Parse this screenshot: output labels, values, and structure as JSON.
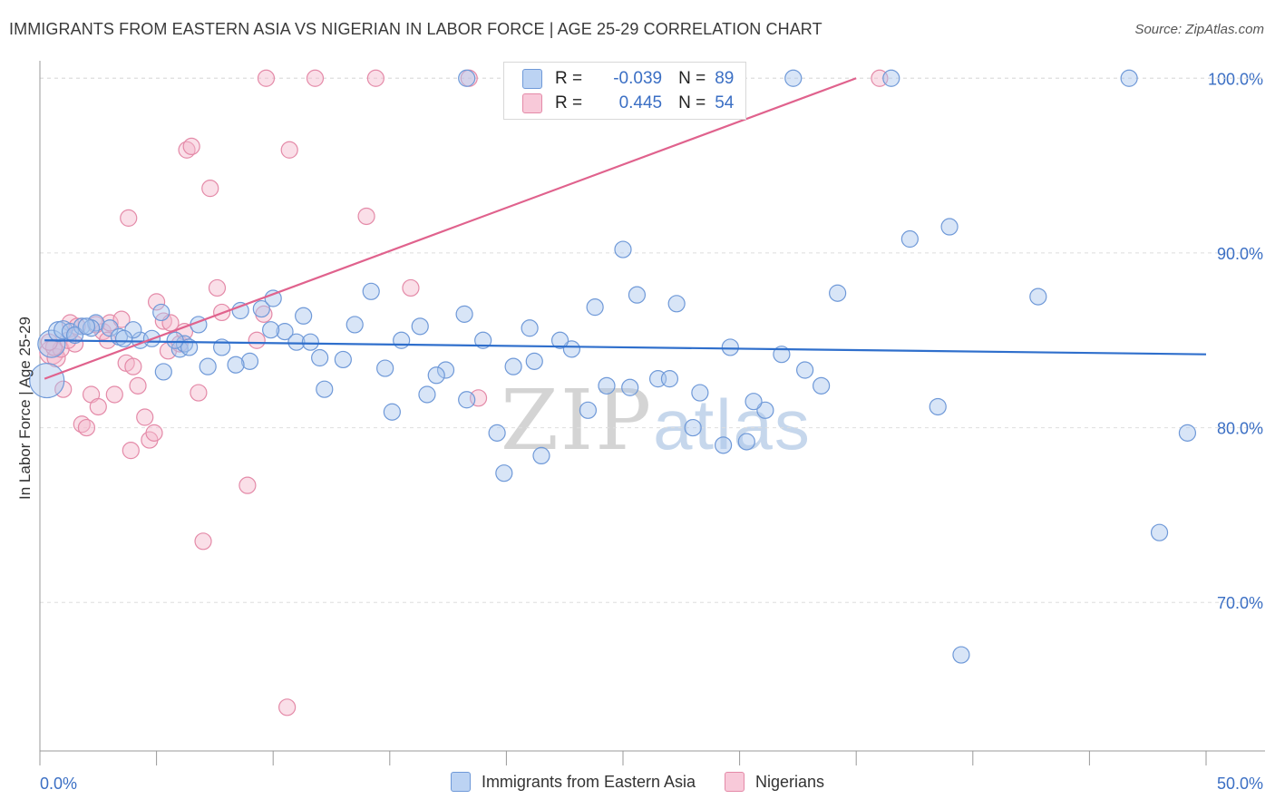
{
  "title": "IMMIGRANTS FROM EASTERN ASIA VS NIGERIAN IN LABOR FORCE | AGE 25-29 CORRELATION CHART",
  "source": "Source: ZipAtlas.com",
  "watermark": {
    "zip": "ZIP",
    "atlas": "atlas"
  },
  "legend_top": {
    "rows": [
      {
        "r_label": "R =",
        "r_value": "-0.039",
        "n_label": "N =",
        "n_value": "89"
      },
      {
        "r_label": "R =",
        "r_value": "0.445",
        "n_label": "N =",
        "n_value": "54"
      }
    ]
  },
  "legend_bottom": {
    "items": [
      {
        "label": "Immigrants from Eastern Asia"
      },
      {
        "label": "Nigerians"
      }
    ]
  },
  "colors": {
    "blue_fill": "#a9c6ee",
    "blue_stroke": "#6f99d8",
    "blue_line": "#2f6fcc",
    "pink_fill": "#f5b8cc",
    "pink_stroke": "#e48aa8",
    "pink_line": "#e0628d",
    "tick_text": "#3b6fc4",
    "grid": "#dedede"
  },
  "chart_data": {
    "type": "scatter",
    "title": "IMMIGRANTS FROM EASTERN ASIA VS NIGERIAN IN LABOR FORCE | AGE 25-29 CORRELATION CHART",
    "xlabel": "",
    "ylabel": "In Labor Force | Age 25-29",
    "xlim": [
      0,
      50
    ],
    "ylim": [
      61.5,
      101
    ],
    "x_tick_labels": [
      "0.0%",
      "50.0%"
    ],
    "y_ticks": [
      70,
      80,
      90,
      100
    ],
    "y_tick_labels": [
      "70.0%",
      "80.0%",
      "90.0%",
      "100.0%"
    ],
    "series": [
      {
        "name": "Immigrants from Eastern Asia",
        "r": -0.039,
        "n": 89,
        "trend": {
          "x": [
            0.2,
            50
          ],
          "y": [
            85.0,
            84.2
          ]
        },
        "points": [
          [
            0.3,
            82.7,
            18
          ],
          [
            0.5,
            84.8,
            14
          ],
          [
            0.8,
            85.5,
            10
          ],
          [
            1.0,
            85.6,
            9
          ],
          [
            1.3,
            85.5,
            8
          ],
          [
            1.8,
            85.8,
            8
          ],
          [
            2.4,
            86.0,
            8
          ],
          [
            3.0,
            85.7,
            8
          ],
          [
            4.3,
            85.0,
            8
          ],
          [
            5.2,
            86.6,
            8
          ],
          [
            5.3,
            83.2,
            8
          ],
          [
            6.0,
            84.5,
            8
          ],
          [
            6.2,
            84.8,
            8
          ],
          [
            7.8,
            84.6,
            8
          ],
          [
            8.6,
            86.7,
            8
          ],
          [
            9.5,
            86.8,
            8
          ],
          [
            10.0,
            87.4,
            8
          ],
          [
            11.3,
            86.4,
            8
          ],
          [
            12.0,
            84.0,
            8
          ],
          [
            12.2,
            82.2,
            8
          ],
          [
            13.5,
            85.9,
            8
          ],
          [
            14.2,
            87.8,
            8
          ],
          [
            14.8,
            83.4,
            8
          ],
          [
            15.1,
            80.9,
            8
          ],
          [
            16.3,
            85.8,
            8
          ],
          [
            16.6,
            81.9,
            8
          ],
          [
            17.4,
            83.3,
            8
          ],
          [
            18.2,
            86.5,
            8
          ],
          [
            18.3,
            81.6,
            8
          ],
          [
            19.0,
            85.0,
            8
          ],
          [
            19.6,
            79.7,
            8
          ],
          [
            20.3,
            83.5,
            8
          ],
          [
            21.0,
            85.7,
            8
          ],
          [
            21.5,
            78.4,
            8
          ],
          [
            22.8,
            84.5,
            8
          ],
          [
            23.5,
            81.0,
            8
          ],
          [
            24.3,
            82.4,
            8
          ],
          [
            25.0,
            90.2,
            8
          ],
          [
            25.6,
            87.6,
            8
          ],
          [
            26.5,
            82.8,
            8
          ],
          [
            27.3,
            87.1,
            8
          ],
          [
            28.3,
            82.0,
            8
          ],
          [
            29.3,
            79.0,
            8
          ],
          [
            29.6,
            84.6,
            8
          ],
          [
            30.3,
            79.2,
            8
          ],
          [
            31.1,
            81.0,
            8
          ],
          [
            31.8,
            84.2,
            8
          ],
          [
            32.3,
            100.0,
            8
          ],
          [
            34.2,
            87.7,
            8
          ],
          [
            36.5,
            100.0,
            8
          ],
          [
            37.3,
            90.8,
            8
          ],
          [
            38.5,
            81.2,
            8
          ],
          [
            39.0,
            91.5,
            8
          ],
          [
            39.5,
            67.0,
            8
          ],
          [
            42.8,
            87.5,
            8
          ],
          [
            46.7,
            100.0,
            8
          ],
          [
            48.0,
            74.0,
            8
          ],
          [
            49.2,
            79.7,
            8
          ],
          [
            1.5,
            85.3,
            8
          ],
          [
            3.4,
            85.2,
            8
          ],
          [
            4.8,
            85.1,
            8
          ],
          [
            6.8,
            85.9,
            8
          ],
          [
            7.2,
            83.5,
            8
          ],
          [
            9.0,
            83.8,
            8
          ],
          [
            10.5,
            85.5,
            8
          ],
          [
            11.0,
            84.9,
            8
          ],
          [
            13.0,
            83.9,
            8
          ],
          [
            15.5,
            85.0,
            8
          ],
          [
            17.0,
            83.0,
            8
          ],
          [
            19.9,
            77.4,
            8
          ],
          [
            21.2,
            83.8,
            8
          ],
          [
            22.3,
            85.0,
            8
          ],
          [
            23.8,
            86.9,
            8
          ],
          [
            25.3,
            82.3,
            8
          ],
          [
            27.0,
            82.8,
            8
          ],
          [
            28.0,
            80.0,
            8
          ],
          [
            30.6,
            81.5,
            8
          ],
          [
            32.8,
            83.3,
            8
          ],
          [
            33.5,
            82.4,
            8
          ],
          [
            18.3,
            100.0,
            8
          ],
          [
            9.9,
            85.6,
            8
          ],
          [
            6.4,
            84.6,
            8
          ],
          [
            2.2,
            85.7,
            8
          ],
          [
            4.0,
            85.6,
            8
          ],
          [
            11.6,
            84.9,
            8
          ],
          [
            8.4,
            83.6,
            8
          ],
          [
            5.8,
            85.0,
            8
          ],
          [
            2.0,
            85.8,
            8
          ],
          [
            3.6,
            85.1,
            8
          ]
        ]
      },
      {
        "name": "Nigerians",
        "r": 0.445,
        "n": 54,
        "trend": {
          "x": [
            0.2,
            35
          ],
          "y": [
            82.8,
            100.0
          ]
        },
        "points": [
          [
            0.5,
            84.3,
            12
          ],
          [
            0.7,
            84.0,
            9
          ],
          [
            0.9,
            84.5,
            8
          ],
          [
            1.0,
            82.2,
            8
          ],
          [
            1.3,
            86.0,
            8
          ],
          [
            1.5,
            84.8,
            8
          ],
          [
            1.8,
            80.2,
            8
          ],
          [
            2.0,
            80.0,
            8
          ],
          [
            2.2,
            81.9,
            8
          ],
          [
            2.5,
            81.2,
            8
          ],
          [
            2.7,
            85.5,
            8
          ],
          [
            3.0,
            86.0,
            8
          ],
          [
            3.2,
            81.9,
            8
          ],
          [
            3.5,
            86.2,
            8
          ],
          [
            3.7,
            83.7,
            8
          ],
          [
            3.9,
            78.7,
            8
          ],
          [
            4.0,
            83.5,
            8
          ],
          [
            4.2,
            82.4,
            8
          ],
          [
            4.5,
            80.6,
            8
          ],
          [
            4.7,
            79.3,
            8
          ],
          [
            4.9,
            79.7,
            8
          ],
          [
            5.0,
            87.2,
            8
          ],
          [
            5.3,
            86.1,
            8
          ],
          [
            5.5,
            84.4,
            8
          ],
          [
            6.0,
            84.8,
            8
          ],
          [
            6.2,
            85.5,
            8
          ],
          [
            6.3,
            95.9,
            8
          ],
          [
            6.5,
            96.1,
            8
          ],
          [
            6.8,
            82.0,
            8
          ],
          [
            7.0,
            73.5,
            8
          ],
          [
            7.3,
            93.7,
            8
          ],
          [
            7.6,
            88.0,
            8
          ],
          [
            7.8,
            86.6,
            8
          ],
          [
            8.9,
            76.7,
            8
          ],
          [
            9.3,
            85.0,
            8
          ],
          [
            9.6,
            86.5,
            8
          ],
          [
            9.7,
            100.0,
            8
          ],
          [
            10.7,
            95.9,
            8
          ],
          [
            10.6,
            64.0,
            8
          ],
          [
            11.8,
            100.0,
            8
          ],
          [
            14.0,
            92.1,
            8
          ],
          [
            14.4,
            100.0,
            8
          ],
          [
            15.9,
            88.0,
            8
          ],
          [
            18.4,
            100.0,
            8
          ],
          [
            18.8,
            81.7,
            8
          ],
          [
            36.0,
            100.0,
            8
          ],
          [
            0.6,
            84.6,
            8
          ],
          [
            1.6,
            85.8,
            8
          ],
          [
            2.9,
            85.0,
            8
          ],
          [
            3.8,
            92.0,
            8
          ],
          [
            5.6,
            86.0,
            8
          ],
          [
            0.4,
            84.9,
            8
          ],
          [
            1.2,
            85.0,
            8
          ],
          [
            2.4,
            85.9,
            8
          ]
        ]
      }
    ]
  }
}
